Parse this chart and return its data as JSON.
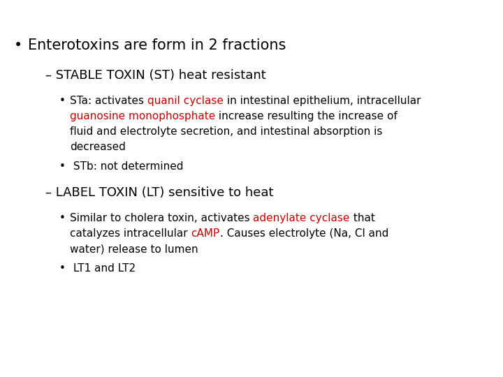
{
  "background_color": "#ffffff",
  "black": "#000000",
  "red": "#cc0000",
  "font_size_h1": 15,
  "font_size_h2": 13,
  "font_size_body": 11,
  "font_weight_h1": "normal",
  "font_weight_h2": "normal",
  "font_weight_body": "normal",
  "bullet1": "Enterotoxins are form in 2 fractions",
  "sub1": "– STABLE TOXIN (ST) heat resistant",
  "sub2": "– LABEL TOXIN (LT) sensitive to heat",
  "sub1_bullet2": " STb: not determined",
  "sub2_bullet2": " LT1 and LT2",
  "sub1_bullet1_parts": [
    {
      "text": "STa: activates ",
      "color": "#000000"
    },
    {
      "text": "quanil cyclase",
      "color": "#cc0000"
    },
    {
      "text": " in intestinal epithelium, intracellular",
      "color": "#000000"
    }
  ],
  "sub1_bullet1_line2_parts": [
    {
      "text": "guanosine monophosphate",
      "color": "#cc0000"
    },
    {
      "text": " increase resulting the increase of",
      "color": "#000000"
    }
  ],
  "sub1_bullet1_line3": "fluid and electrolyte secretion, and intestinal absorption is",
  "sub1_bullet1_line4": "decreased",
  "sub2_bullet1_parts": [
    {
      "text": "Similar to cholera toxin, activates ",
      "color": "#000000"
    },
    {
      "text": "adenylate cyclase",
      "color": "#cc0000"
    },
    {
      "text": " that",
      "color": "#000000"
    }
  ],
  "sub2_bullet1_line2_parts": [
    {
      "text": "catalyzes intracellular ",
      "color": "#000000"
    },
    {
      "text": "cAMP",
      "color": "#cc0000"
    },
    {
      "text": ". Causes electrolyte (Na, Cl and",
      "color": "#000000"
    }
  ],
  "sub2_bullet1_line3": "water) release to lumen"
}
